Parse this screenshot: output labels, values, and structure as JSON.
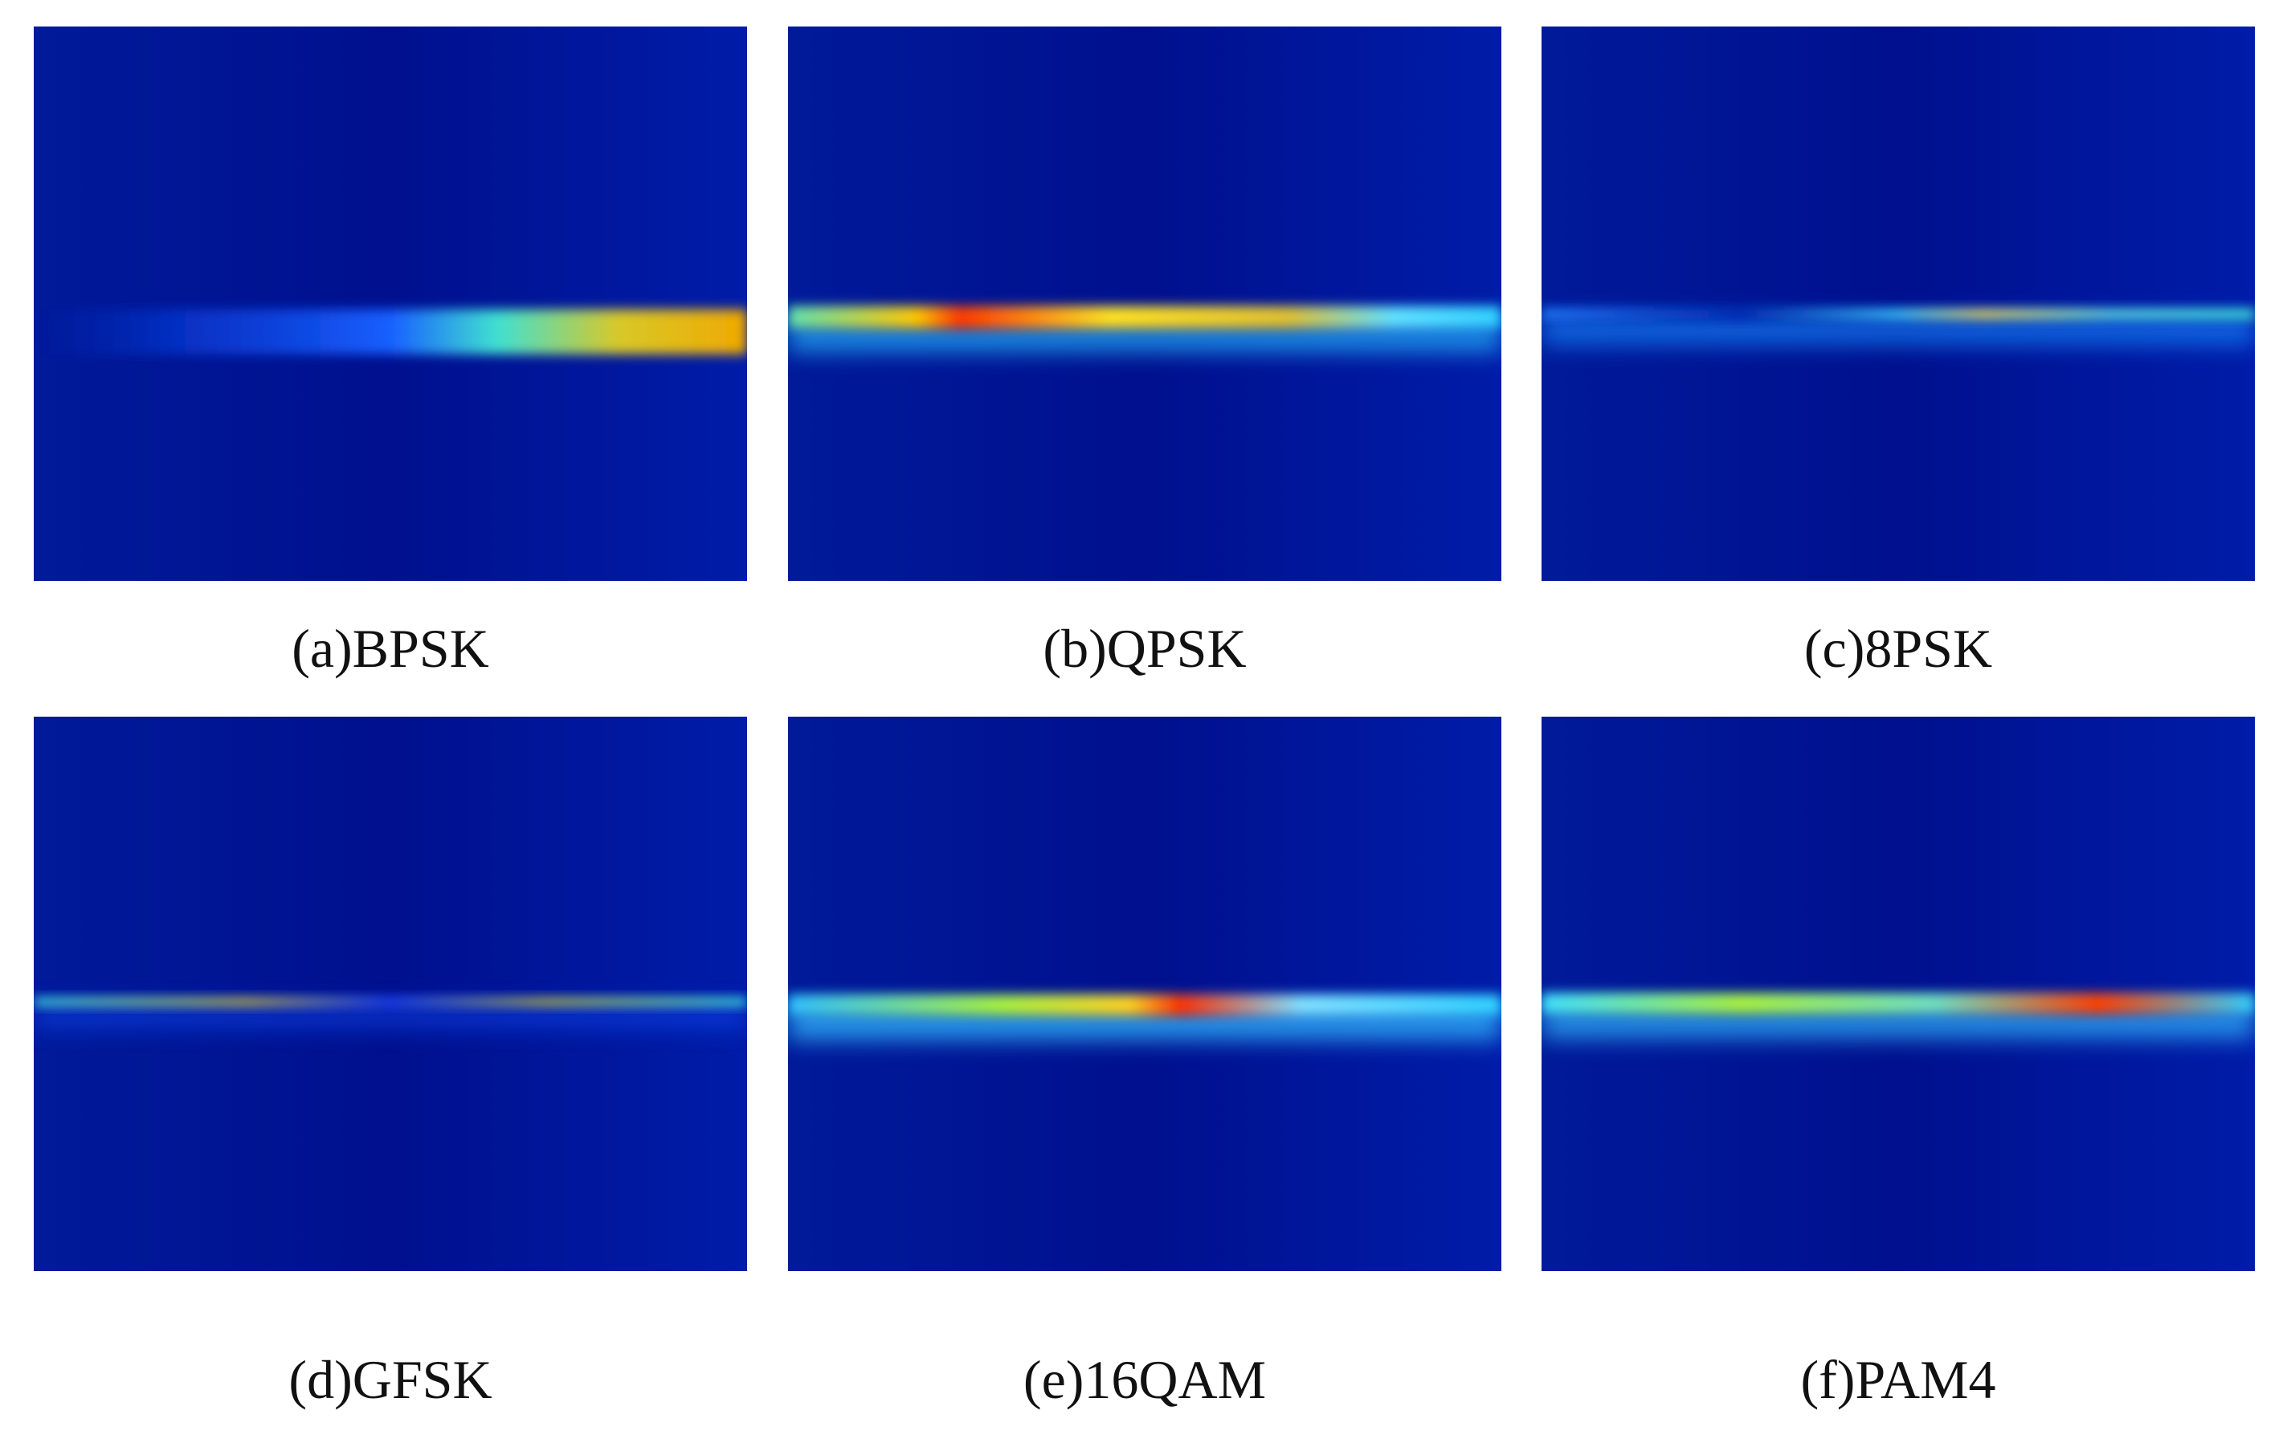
{
  "panels": [
    {
      "label": "(a)BPSK"
    },
    {
      "label": "(b)QPSK"
    },
    {
      "label": "(c)8PSK"
    },
    {
      "label": "(d)GFSK"
    },
    {
      "label": "(e)16QAM"
    },
    {
      "label": "(f)PAM4"
    }
  ]
}
